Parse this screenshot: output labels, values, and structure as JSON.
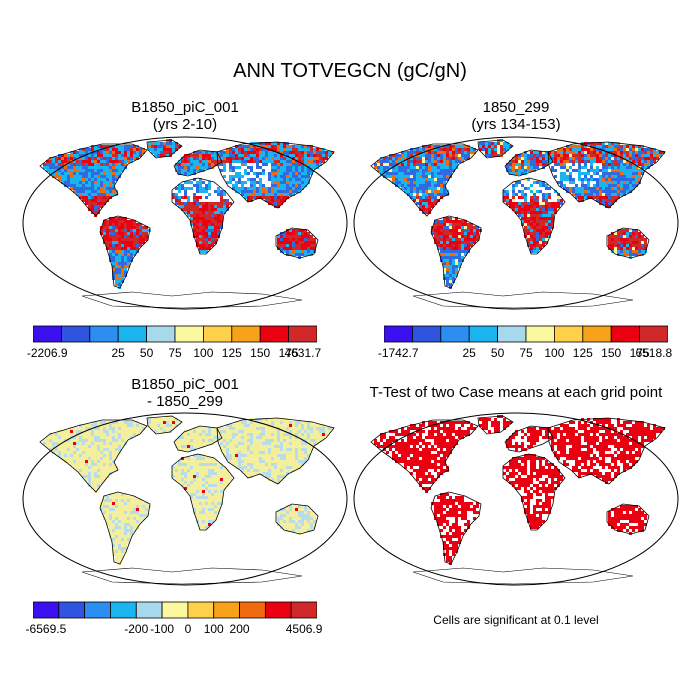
{
  "title": "ANN TOTVEGCN (gC/gN)",
  "colors": {
    "levels": [
      "#3a10f0",
      "#2f55e0",
      "#2a8ff0",
      "#1ab4f0",
      "#a8d8ec",
      "#fbf8a0",
      "#ffd04a",
      "#f7a218",
      "#f26a10",
      "#ea0010",
      "#d02828"
    ],
    "land_base": [
      "#2f6be0",
      "#1ab4f0"
    ],
    "warm": [
      "#ea0010",
      "#d02828",
      "#f26a10"
    ],
    "diff_base": "#f3ef9c",
    "diff_alt": "#b8dcea",
    "ttest": "#ea0010"
  },
  "panels": [
    {
      "title_line1": "B1850_piC_001",
      "title_line2": "(yrs 2-10)",
      "colorbar": {
        "labels": [
          "-2206.9",
          "25",
          "50",
          "75",
          "100",
          "125",
          "150",
          "175",
          "4631.7"
        ]
      }
    },
    {
      "title_line1": "1850_299",
      "title_line2": "(yrs 134-153)",
      "colorbar": {
        "labels": [
          "-1742.7",
          "25",
          "50",
          "75",
          "100",
          "125",
          "150",
          "175",
          "6518.8"
        ]
      }
    },
    {
      "title_line1": "B1850_piC_001",
      "title_line2": "- 1850_299",
      "colorbar": {
        "labels": [
          "-6569.5",
          "-200",
          "-100",
          "0",
          "100",
          "200",
          "4506.9"
        ]
      }
    },
    {
      "title_line1": "T-Test of two Case means at each grid point",
      "title_line2": "",
      "note": "Cells are significant at 0.1 level"
    }
  ]
}
